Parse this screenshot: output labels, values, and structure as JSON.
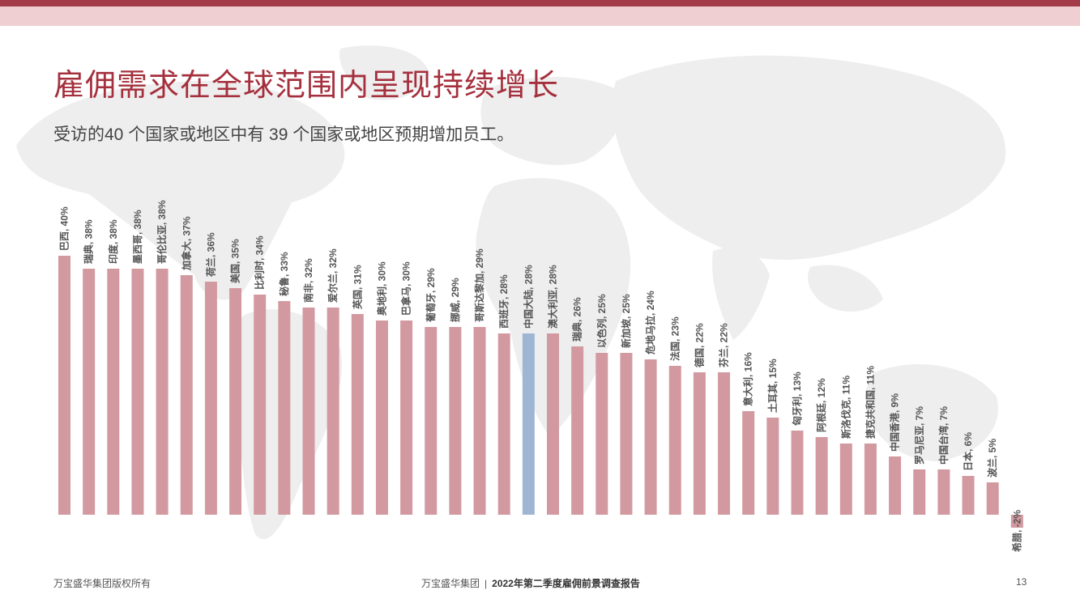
{
  "title": "雇佣需求在全球范围内呈现持续增长",
  "subtitle": "受访的40 个国家或地区中有 39 个国家或地区预期增加员工。",
  "colors": {
    "bar": "#d29aa0",
    "highlight": "#9fb5d4",
    "title": "#a5303d",
    "label": "#555555"
  },
  "chart_data": {
    "type": "bar",
    "title": "",
    "xlabel": "",
    "ylabel": "",
    "ylim": [
      -2,
      40
    ],
    "unit": "%",
    "highlight_category": "中国大陆",
    "categories": [
      "巴西",
      "瑞典",
      "印度",
      "墨西哥",
      "哥伦比亚",
      "加拿大",
      "荷兰",
      "美国",
      "比利时",
      "秘鲁",
      "南非",
      "爱尔兰",
      "英国",
      "奥地利",
      "巴拿马",
      "葡萄牙",
      "挪威",
      "哥斯达黎加",
      "西班牙",
      "中国大陆",
      "澳大利亚",
      "瑞典",
      "以色列",
      "新加坡",
      "危地马拉",
      "法国",
      "德国",
      "芬兰",
      "意大利",
      "土耳其",
      "匈牙利",
      "阿根廷",
      "斯洛伐克",
      "捷克共和国",
      "中国香港",
      "罗马尼亚",
      "中国台湾",
      "日本",
      "波兰",
      "希腊"
    ],
    "values": [
      40,
      38,
      38,
      38,
      38,
      37,
      36,
      35,
      34,
      33,
      32,
      32,
      31,
      30,
      30,
      29,
      29,
      29,
      28,
      28,
      28,
      26,
      25,
      25,
      24,
      23,
      22,
      22,
      16,
      15,
      13,
      12,
      11,
      11,
      9,
      7,
      7,
      6,
      5,
      -2
    ],
    "data_labels": [
      "巴西, 40%",
      "瑞典, 38%",
      "印度, 38%",
      "墨西哥, 38%",
      "哥伦比亚, 38%",
      "加拿大, 37%",
      "荷兰, 36%",
      "美国, 35%",
      "比利时, 34%",
      "秘鲁, 33%",
      "南非, 32%",
      "爱尔兰, 32%",
      "英国, 31%",
      "奥地利, 30%",
      "巴拿马, 30%",
      "葡萄牙, 29%",
      "挪威, 29%",
      "哥斯达黎加, 29%",
      "西班牙, 28%",
      "中国大陆, 28%",
      "澳大利亚, 28%",
      "瑞典, 26%",
      "以色列, 25%",
      "新加坡, 25%",
      "危地马拉, 24%",
      "法国, 23%",
      "德国, 22%",
      "芬兰, 22%",
      "意大利, 16%",
      "土耳其, 15%",
      "匈牙利, 13%",
      "阿根廷, 12%",
      "斯洛伐克, 11%",
      "捷克共和国, 11%",
      "中国香港, 9%",
      "罗马尼亚, 7%",
      "中国台湾, 7%",
      "日本, 6%",
      "波兰, 5%",
      "希腊, -2%"
    ]
  },
  "footer": {
    "copyright": "万宝盛华集团版权所有",
    "company": "万宝盛华集团",
    "separator": "|",
    "report": "2022年第二季度雇佣前景调查报告",
    "page_number": "13"
  }
}
